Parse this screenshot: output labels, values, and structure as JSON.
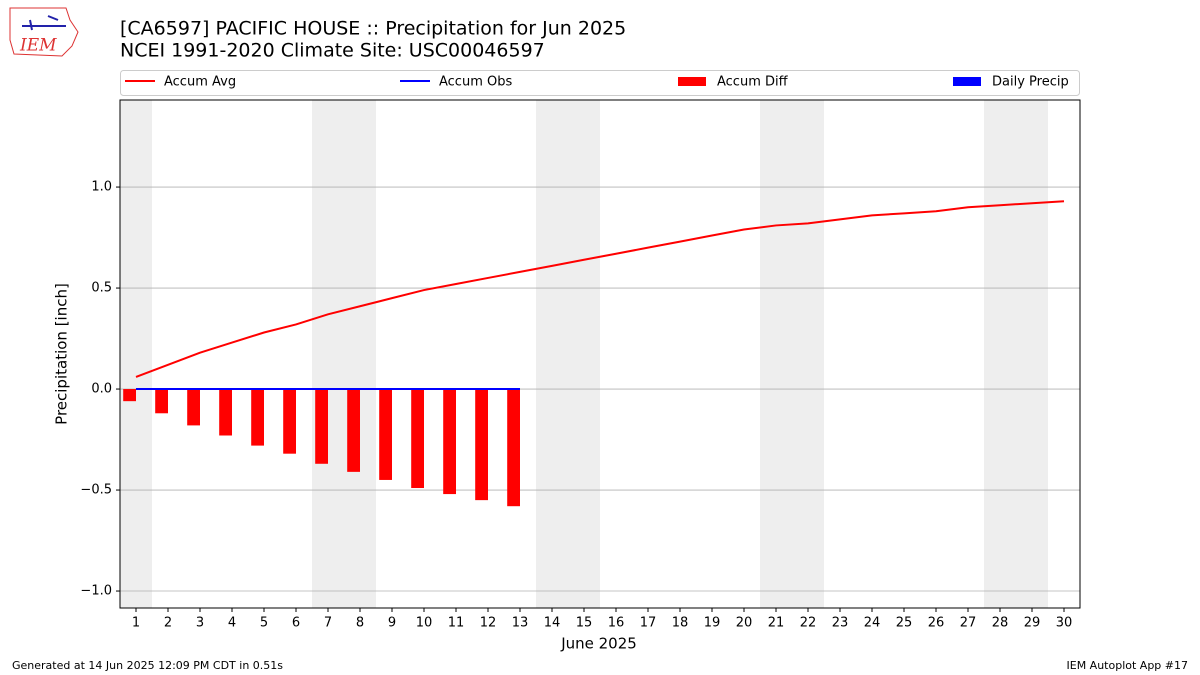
{
  "chart_data": {
    "type": "line",
    "title": "[CA6597] PACIFIC HOUSE :: Precipitation for Jun 2025",
    "subtitle": "NCEI 1991-2020 Climate Site: USC00046597",
    "logo": "IEM",
    "xlabel": "June 2025",
    "ylabel": "Precipitation [inch]",
    "x": [
      1,
      2,
      3,
      4,
      5,
      6,
      7,
      8,
      9,
      10,
      11,
      12,
      13,
      14,
      15,
      16,
      17,
      18,
      19,
      20,
      21,
      22,
      23,
      24,
      25,
      26,
      27,
      28,
      29,
      30
    ],
    "xlim": [
      0.5,
      30.5
    ],
    "xticks": [
      1,
      2,
      3,
      4,
      5,
      6,
      7,
      8,
      9,
      10,
      11,
      12,
      13,
      14,
      15,
      16,
      17,
      18,
      19,
      20,
      21,
      22,
      23,
      24,
      25,
      26,
      27,
      28,
      29,
      30
    ],
    "ylim": [
      -1.084,
      1.431
    ],
    "yticks": [
      {
        "value": -1.0,
        "label": "−1.0"
      },
      {
        "value": -0.5,
        "label": "−0.5"
      },
      {
        "value": 0,
        "label": "0.0"
      },
      0.5,
      {
        "value": 1.0,
        "label": "1.0"
      }
    ],
    "grid": true,
    "shaded_spans": [
      [
        0.5,
        1.5
      ],
      [
        6.5,
        8.5
      ],
      [
        13.5,
        15.5
      ],
      [
        20.5,
        22.5
      ],
      [
        27.5,
        29.5
      ]
    ],
    "shade_color": "#eeeeee",
    "legend": "top",
    "series": [
      {
        "name": "Accum Avg",
        "kind": "line",
        "color": "#ff0000",
        "values": [
          0.06,
          0.12,
          0.18,
          0.23,
          0.28,
          0.32,
          0.37,
          0.41,
          0.45,
          0.49,
          0.52,
          0.55,
          0.58,
          0.61,
          0.64,
          0.67,
          0.7,
          0.73,
          0.76,
          0.79,
          0.81,
          0.82,
          0.84,
          0.86,
          0.87,
          0.88,
          0.9,
          0.91,
          0.92,
          0.93
        ]
      },
      {
        "name": "Accum Obs",
        "kind": "line",
        "color": "#0000ff",
        "values": [
          0,
          0,
          0,
          0,
          0,
          0,
          0,
          0,
          0,
          0,
          0,
          0,
          0,
          null,
          null,
          null,
          null,
          null,
          null,
          null,
          null,
          null,
          null,
          null,
          null,
          null,
          null,
          null,
          null,
          null
        ]
      },
      {
        "name": "Accum Diff",
        "kind": "bar",
        "color": "#ff0000",
        "values": [
          -0.06,
          -0.12,
          -0.18,
          -0.23,
          -0.28,
          -0.32,
          -0.37,
          -0.41,
          -0.45,
          -0.49,
          -0.52,
          -0.55,
          -0.58,
          null,
          null,
          null,
          null,
          null,
          null,
          null,
          null,
          null,
          null,
          null,
          null,
          null,
          null,
          null,
          null,
          null
        ]
      },
      {
        "name": "Daily Precip",
        "kind": "bar",
        "color": "#0000ff",
        "values": [
          0,
          0,
          0,
          0,
          0,
          0,
          0,
          0,
          0,
          0,
          0,
          0,
          0,
          null,
          null,
          null,
          null,
          null,
          null,
          null,
          null,
          null,
          null,
          null,
          null,
          null,
          null,
          null,
          null,
          null
        ]
      }
    ],
    "footer_left": "Generated at 14 Jun 2025 12:09 PM CDT in 0.51s",
    "footer_right": "IEM Autoplot App #17"
  }
}
